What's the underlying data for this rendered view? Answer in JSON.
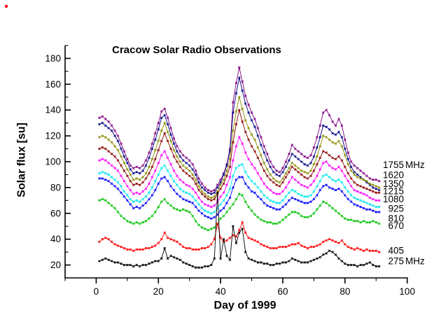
{
  "window": {
    "background": "#ffffff"
  },
  "artifact_dot": {
    "color": "#ff1a1a"
  },
  "chart_data": {
    "type": "line",
    "title": "Cracow Solar Radio Observations",
    "xlabel": "Day of 1999",
    "ylabel": "Solar flux [su]",
    "xlim": [
      -10,
      100
    ],
    "ylim": [
      10,
      190
    ],
    "x_ticks_major": [
      0,
      20,
      40,
      60,
      80,
      100
    ],
    "x_ticks_minor": [
      -10,
      10,
      30,
      50,
      70,
      90
    ],
    "y_ticks_major": [
      20,
      40,
      60,
      80,
      100,
      120,
      140,
      160,
      180
    ],
    "y_ticks_minor": [
      30,
      50,
      70,
      90,
      110,
      130,
      150,
      170,
      190
    ],
    "grid": false,
    "legend_position": "right-outside",
    "marker": "small-cross",
    "x_start": 1,
    "x_step": 1,
    "series": [
      {
        "name": "1755 MHz",
        "label": "1755",
        "suffix": " MHz",
        "color": "#800080",
        "values": [
          134,
          135,
          133,
          131,
          128,
          124,
          120,
          114,
          108,
          102,
          97,
          95,
          96,
          95,
          97,
          101,
          107,
          114,
          122,
          130,
          139,
          141,
          134,
          126,
          118,
          112,
          108,
          105,
          103,
          101,
          98,
          93,
          87,
          83,
          80,
          78,
          77,
          78,
          82,
          86,
          91,
          98,
          110,
          146,
          161,
          173,
          162,
          151,
          144,
          138,
          133,
          126,
          119,
          112,
          106,
          100,
          96,
          93,
          92,
          95,
          100,
          106,
          113,
          110,
          108,
          106,
          104,
          103,
          105,
          111,
          119,
          128,
          138,
          140,
          136,
          131,
          128,
          133,
          128,
          117,
          107,
          100,
          97,
          95,
          93,
          91,
          89,
          87,
          86,
          86,
          85
        ]
      },
      {
        "name": "1620 MHz",
        "label": "1620",
        "suffix": "",
        "color": "#000080",
        "values": [
          129,
          130,
          128,
          126,
          124,
          120,
          116,
          110,
          104,
          99,
          94,
          91,
          92,
          91,
          93,
          97,
          103,
          110,
          117,
          125,
          134,
          136,
          129,
          121,
          114,
          108,
          104,
          101,
          99,
          97,
          94,
          90,
          84,
          80,
          78,
          76,
          75,
          76,
          80,
          84,
          90,
          97,
          108,
          138,
          153,
          165,
          155,
          145,
          138,
          132,
          127,
          120,
          113,
          107,
          101,
          96,
          92,
          90,
          89,
          92,
          96,
          101,
          106,
          104,
          102,
          100,
          98,
          97,
          99,
          104,
          111,
          119,
          128,
          127,
          125,
          122,
          121,
          123,
          119,
          110,
          102,
          96,
          92,
          90,
          88,
          86,
          84,
          82,
          80,
          79,
          78
        ]
      },
      {
        "name": "1350 MHz",
        "label": "1350",
        "suffix": "",
        "color": "#8B8B00",
        "values": [
          119,
          120,
          119,
          117,
          115,
          112,
          109,
          104,
          99,
          94,
          90,
          86,
          87,
          86,
          88,
          91,
          96,
          102,
          109,
          116,
          124,
          130,
          123,
          116,
          109,
          104,
          100,
          97,
          95,
          93,
          90,
          86,
          81,
          77,
          75,
          73,
          72,
          73,
          77,
          82,
          86,
          93,
          102,
          124,
          139,
          150,
          141,
          132,
          126,
          121,
          117,
          111,
          105,
          99,
          94,
          90,
          87,
          85,
          84,
          87,
          91,
          95,
          99,
          97,
          95,
          93,
          92,
          91,
          93,
          98,
          104,
          112,
          120,
          119,
          117,
          115,
          114,
          116,
          112,
          105,
          98,
          93,
          90,
          88,
          87,
          86,
          85,
          83,
          82,
          81,
          80
        ]
      },
      {
        "name": "1215 MHz",
        "label": "1215",
        "suffix": "",
        "color": "#8B0000",
        "values": [
          110,
          111,
          110,
          108,
          106,
          104,
          101,
          97,
          93,
          89,
          85,
          82,
          83,
          82,
          84,
          87,
          91,
          96,
          102,
          109,
          116,
          122,
          116,
          110,
          104,
          100,
          96,
          93,
          91,
          89,
          87,
          83,
          78,
          75,
          73,
          71,
          70,
          71,
          75,
          79,
          83,
          89,
          96,
          115,
          129,
          140,
          131,
          123,
          117,
          112,
          108,
          103,
          98,
          93,
          89,
          86,
          84,
          82,
          81,
          84,
          88,
          92,
          96,
          94,
          92,
          90,
          88,
          87,
          89,
          93,
          98,
          103,
          108,
          107,
          105,
          103,
          102,
          104,
          101,
          96,
          91,
          87,
          84,
          82,
          81,
          80,
          79,
          78,
          77,
          76,
          76
        ]
      },
      {
        "name": "1080 MHz",
        "label": "1080",
        "suffix": "",
        "color": "#FF00FF",
        "values": [
          101,
          102,
          101,
          99,
          97,
          95,
          93,
          89,
          85,
          81,
          78,
          75,
          76,
          75,
          77,
          79,
          83,
          88,
          93,
          99,
          105,
          108,
          103,
          98,
          93,
          89,
          86,
          84,
          82,
          81,
          79,
          76,
          72,
          69,
          67,
          66,
          65,
          66,
          69,
          73,
          76,
          82,
          88,
          101,
          112,
          119,
          114,
          107,
          102,
          98,
          95,
          91,
          87,
          83,
          80,
          78,
          76,
          75,
          75,
          77,
          80,
          84,
          88,
          86,
          84,
          82,
          81,
          80,
          82,
          85,
          89,
          94,
          99,
          100,
          97,
          95,
          94,
          96,
          93,
          89,
          85,
          81,
          78,
          77,
          76,
          75,
          74,
          72,
          71,
          70,
          70
        ]
      },
      {
        "name": "925 MHz",
        "label": "925",
        "suffix": "",
        "color": "#00E5EE",
        "values": [
          91,
          92,
          91,
          90,
          88,
          86,
          84,
          81,
          77,
          74,
          71,
          69,
          70,
          69,
          71,
          73,
          76,
          80,
          85,
          90,
          95,
          97,
          93,
          89,
          85,
          82,
          79,
          77,
          76,
          75,
          73,
          70,
          67,
          64,
          62,
          61,
          60,
          61,
          64,
          67,
          70,
          74,
          79,
          89,
          95,
          97,
          98,
          92,
          88,
          85,
          83,
          80,
          77,
          74,
          72,
          70,
          69,
          68,
          68,
          70,
          73,
          76,
          78,
          77,
          75,
          74,
          73,
          73,
          74,
          77,
          81,
          85,
          89,
          90,
          88,
          86,
          85,
          86,
          84,
          80,
          77,
          74,
          72,
          71,
          70,
          69,
          68,
          67,
          66,
          65,
          65
        ]
      },
      {
        "name": "810 MHz",
        "label": "810",
        "suffix": "",
        "color": "#0000FF",
        "values": [
          87,
          87,
          86,
          85,
          83,
          81,
          79,
          76,
          73,
          70,
          67,
          64,
          65,
          64,
          66,
          68,
          71,
          74,
          78,
          83,
          87,
          88,
          85,
          81,
          78,
          75,
          73,
          71,
          70,
          69,
          68,
          65,
          62,
          60,
          58,
          57,
          56,
          57,
          59,
          62,
          64,
          68,
          72,
          80,
          86,
          88,
          88,
          83,
          80,
          77,
          76,
          73,
          71,
          68,
          66,
          65,
          64,
          63,
          63,
          65,
          67,
          70,
          72,
          71,
          70,
          69,
          68,
          68,
          69,
          71,
          74,
          78,
          81,
          82,
          80,
          79,
          78,
          79,
          77,
          74,
          71,
          69,
          67,
          66,
          65,
          64,
          63,
          63,
          62,
          61,
          61
        ]
      },
      {
        "name": "670 MHz",
        "label": "670",
        "suffix": "",
        "color": "#00C000",
        "values": [
          70,
          71,
          70,
          68,
          66,
          64,
          61,
          58,
          56,
          54,
          53,
          52,
          53,
          52,
          53,
          54,
          56,
          58,
          61,
          65,
          69,
          71,
          68,
          66,
          64,
          63,
          62,
          63,
          62,
          61,
          58,
          54,
          51,
          49,
          48,
          47,
          48,
          49,
          52,
          56,
          58,
          61,
          64,
          67,
          71,
          75,
          74,
          69,
          65,
          62,
          59,
          57,
          55,
          54,
          53,
          53,
          52,
          52,
          53,
          55,
          57,
          59,
          61,
          61,
          60,
          58,
          57,
          57,
          58,
          60,
          63,
          66,
          69,
          68,
          66,
          64,
          62,
          60,
          58,
          56,
          55,
          55,
          54,
          54,
          53,
          54,
          53,
          53,
          54,
          53,
          52
        ]
      },
      {
        "name": "405 MHz",
        "label": "405",
        "suffix": "",
        "color": "#FF0000",
        "values": [
          38,
          40,
          41,
          40,
          38,
          36,
          35,
          34,
          33,
          32,
          32,
          31,
          32,
          32,
          32,
          33,
          33,
          34,
          35,
          37,
          40,
          45,
          41,
          40,
          39,
          38,
          36,
          34,
          33,
          33,
          32,
          32,
          32,
          33,
          33,
          34,
          36,
          40,
          52,
          41,
          38,
          39,
          41,
          43,
          42,
          47,
          53,
          45,
          41,
          40,
          39,
          38,
          36,
          35,
          34,
          33,
          33,
          33,
          34,
          34,
          34,
          35,
          36,
          36,
          37,
          35,
          34,
          33,
          34,
          34,
          35,
          36,
          38,
          39,
          40,
          39,
          38,
          37,
          39,
          36,
          34,
          33,
          32,
          33,
          32,
          31,
          32,
          31,
          31,
          31,
          30
        ]
      },
      {
        "name": "275 MHz",
        "label": "275",
        "suffix": " MHz",
        "color": "#000000",
        "values": [
          23,
          24,
          25,
          24,
          23,
          22,
          22,
          21,
          20,
          20,
          20,
          19,
          20,
          19,
          20,
          20,
          21,
          22,
          23,
          23,
          25,
          33,
          25,
          27,
          26,
          25,
          24,
          22,
          21,
          20,
          19,
          18,
          18,
          18,
          19,
          19,
          20,
          25,
          76,
          25,
          40,
          27,
          24,
          50,
          37,
          45,
          48,
          30,
          25,
          24,
          23,
          22,
          22,
          21,
          21,
          20,
          20,
          21,
          21,
          22,
          22,
          23,
          25,
          24,
          23,
          22,
          22,
          22,
          23,
          24,
          25,
          26,
          28,
          29,
          31,
          30,
          28,
          25,
          23,
          21,
          20,
          20,
          20,
          19,
          20,
          20,
          21,
          22,
          20,
          19,
          19
        ]
      }
    ]
  }
}
